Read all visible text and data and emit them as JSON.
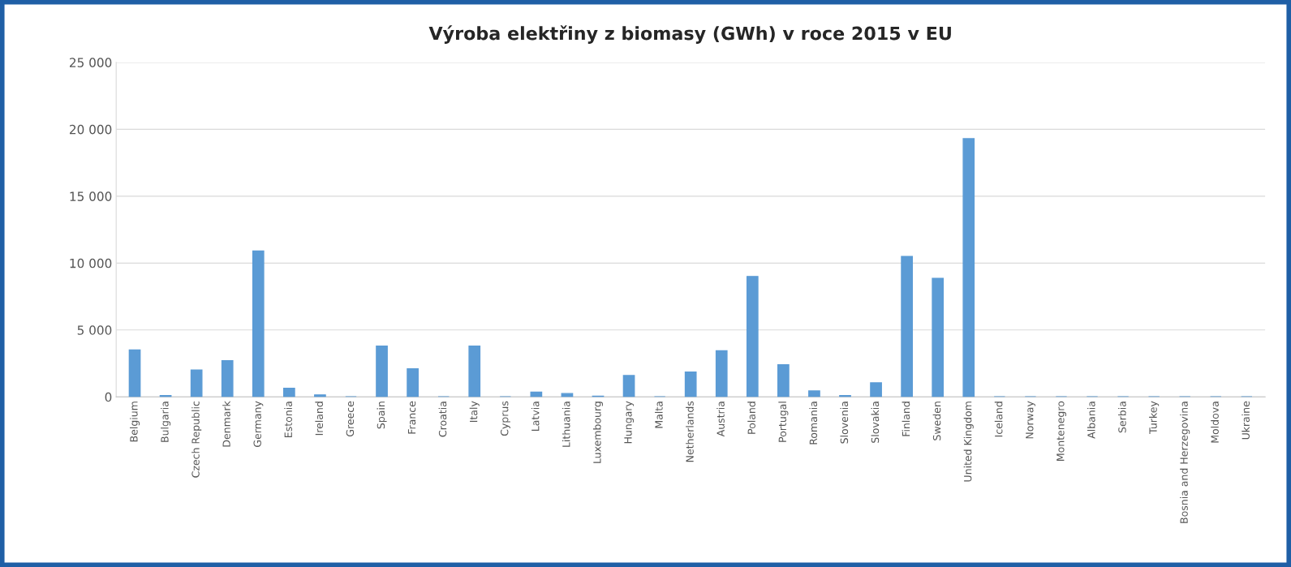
{
  "chart_data": {
    "type": "bar",
    "title": "Výroba elektřiny z biomasy (GWh) v roce 2015 v EU",
    "categories": [
      "Belgium",
      "Bulgaria",
      "Czech Republic",
      "Denmark",
      "Germany",
      "Estonia",
      "Ireland",
      "Greece",
      "Spain",
      "France",
      "Croatia",
      "Italy",
      "Cyprus",
      "Latvia",
      "Lithuania",
      "Luxembourg",
      "Hungary",
      "Malta",
      "Netherlands",
      "Austria",
      "Poland",
      "Portugal",
      "Romania",
      "Slovenia",
      "Slovakia",
      "Finland",
      "Sweden",
      "United Kingdom",
      "Iceland",
      "Norway",
      "Montenegro",
      "Albania",
      "Serbia",
      "Turkey",
      "Bosnia and Herzegovina",
      "Moldova",
      "Ukraine"
    ],
    "values": [
      3500,
      100,
      2000,
      2700,
      10900,
      650,
      150,
      0,
      3800,
      2100,
      0,
      3800,
      0,
      350,
      250,
      50,
      1600,
      0,
      1850,
      3450,
      9000,
      2400,
      450,
      100,
      1050,
      10500,
      8850,
      19300,
      0,
      0,
      0,
      0,
      0,
      0,
      0,
      0,
      0
    ],
    "color": "#5b9bd5",
    "ylim": [
      0,
      25000
    ],
    "yticks": [
      {
        "value": 0,
        "label": "0"
      },
      {
        "value": 5000,
        "label": "5 000"
      },
      {
        "value": 10000,
        "label": "10 000"
      },
      {
        "value": 15000,
        "label": "15 000"
      },
      {
        "value": 20000,
        "label": "20 000"
      },
      {
        "value": 25000,
        "label": "25 000"
      }
    ],
    "grid": "y"
  }
}
